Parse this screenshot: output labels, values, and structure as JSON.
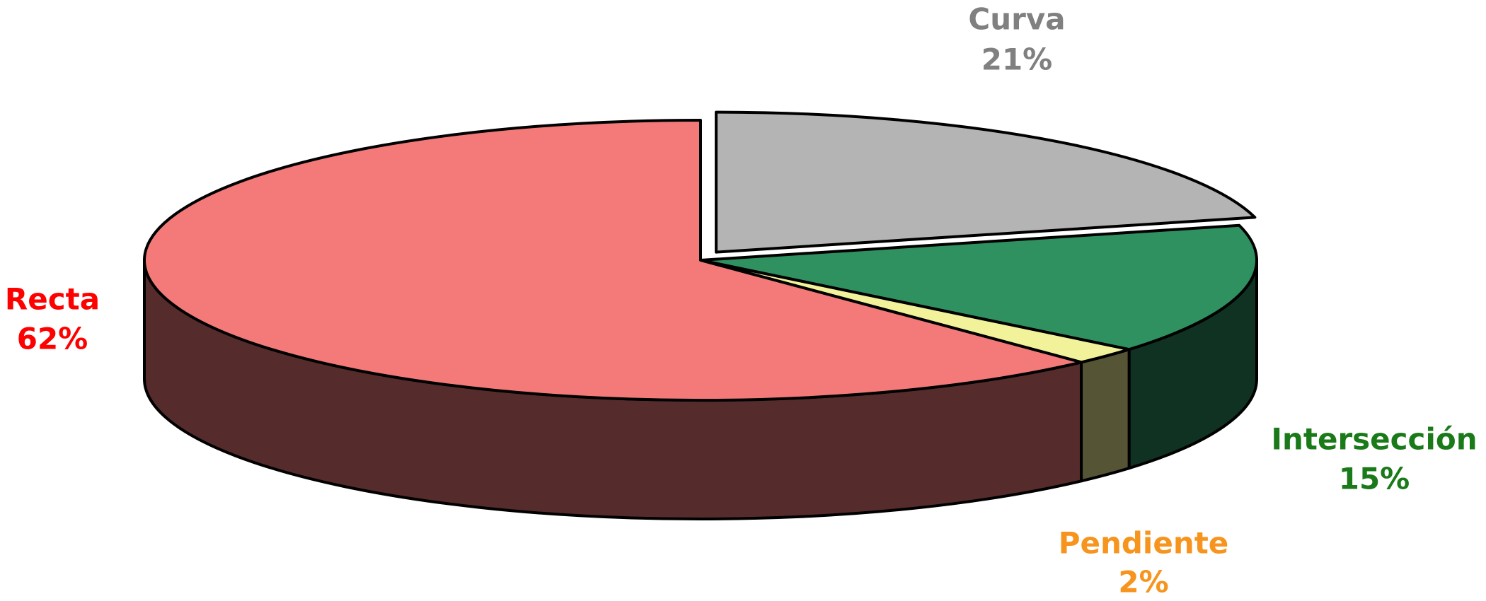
{
  "chart_data": {
    "type": "pie3d",
    "categories": [
      "Curva",
      "Intersección",
      "Pendiente",
      "Recta"
    ],
    "values": [
      21,
      15,
      2,
      62
    ],
    "value_labels": [
      "21%",
      "15%",
      "2%",
      "62%"
    ],
    "colors": [
      "#b4b4b4",
      "#2f9060",
      "#f2f29a",
      "#f47a7a"
    ],
    "label_colors": [
      "#808080",
      "#1a7a1a",
      "#f7941d",
      "#ff0000"
    ]
  }
}
